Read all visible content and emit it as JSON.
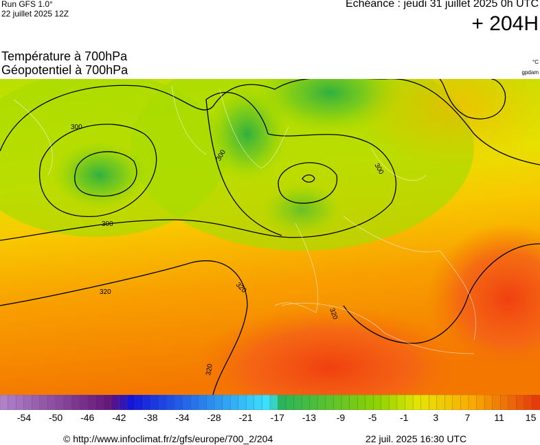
{
  "header": {
    "run": "Run GFS 1.0°",
    "run_date": "22 juillet 2025 12Z",
    "valid": "Echéance : jeudi 31 juillet 2025 0h UTC",
    "lead": "+ 204H",
    "title_1": "Température à 700hPa",
    "title_2": "Géopotentiel à 700hPa",
    "unit_temp": "°C",
    "unit_geo": "gpdam"
  },
  "map": {
    "contour_labels": [
      "300",
      "300",
      "300",
      "300",
      "320",
      "320",
      "320",
      "320"
    ]
  },
  "colorbar": {
    "labels": [
      "-54",
      "-50",
      "-46",
      "-42",
      "-38",
      "-34",
      "-28",
      "-21",
      "-17",
      "-13",
      "-9",
      "-5",
      "-1",
      "3",
      "7",
      "11",
      "15"
    ]
  },
  "footer": {
    "source": "© http://www.infoclimat.fr/z/gfs/europe/700_2/204",
    "generated": "22 juil. 2025 16:30 UTC"
  }
}
